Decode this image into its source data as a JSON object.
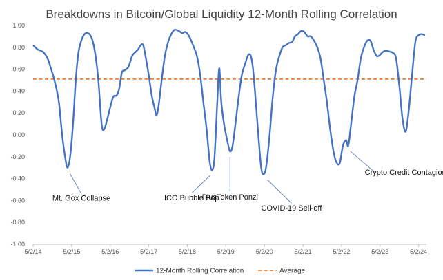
{
  "chart_data": {
    "type": "line",
    "title": "Breakdowns in Bitcoin/Global Liquidity 12-Month Rolling Correlation",
    "ylim": [
      -1.0,
      1.0
    ],
    "xlim": [
      "2014-05-02",
      "2024-07-15"
    ],
    "y_ticks": [
      "1.00",
      "0.80",
      "0.60",
      "0.40",
      "0.20",
      "0.00",
      "-0.20",
      "-0.40",
      "-0.60",
      "-0.80",
      "-1.00"
    ],
    "y_tick_values": [
      1.0,
      0.8,
      0.6,
      0.4,
      0.2,
      0.0,
      -0.2,
      -0.4,
      -0.6,
      -0.8,
      -1.0
    ],
    "x_ticks": [
      "5/2/14",
      "5/2/15",
      "5/2/16",
      "5/2/17",
      "5/2/18",
      "5/2/19",
      "5/2/20",
      "5/2/21",
      "5/2/22",
      "5/2/23",
      "5/2/24"
    ],
    "x_tick_dates": [
      "2014-05-02",
      "2015-05-02",
      "2016-05-02",
      "2017-05-02",
      "2018-05-02",
      "2019-05-02",
      "2020-05-02",
      "2021-05-02",
      "2022-05-02",
      "2023-05-02",
      "2024-05-02"
    ],
    "grid": false,
    "legend_position": "bottom",
    "series": [
      {
        "name": "12-Month Rolling Correlation",
        "color": "#4472C4",
        "style": "solid",
        "points": [
          [
            "2014-05-02",
            0.82
          ],
          [
            "2014-06-15",
            0.78
          ],
          [
            "2014-08-01",
            0.76
          ],
          [
            "2014-09-15",
            0.7
          ],
          [
            "2014-10-20",
            0.6
          ],
          [
            "2014-11-25",
            0.48
          ],
          [
            "2015-01-01",
            0.3
          ],
          [
            "2015-02-01",
            0.0
          ],
          [
            "2015-03-01",
            -0.2
          ],
          [
            "2015-03-25",
            -0.3
          ],
          [
            "2015-04-20",
            -0.18
          ],
          [
            "2015-05-15",
            0.1
          ],
          [
            "2015-06-10",
            0.5
          ],
          [
            "2015-07-05",
            0.75
          ],
          [
            "2015-08-01",
            0.86
          ],
          [
            "2015-09-01",
            0.92
          ],
          [
            "2015-10-05",
            0.93
          ],
          [
            "2015-11-10",
            0.88
          ],
          [
            "2015-12-10",
            0.75
          ],
          [
            "2016-01-10",
            0.5
          ],
          [
            "2016-02-10",
            0.1
          ],
          [
            "2016-03-05",
            0.05
          ],
          [
            "2016-04-05",
            0.15
          ],
          [
            "2016-05-01",
            0.25
          ],
          [
            "2016-06-01",
            0.35
          ],
          [
            "2016-07-01",
            0.36
          ],
          [
            "2016-07-25",
            0.42
          ],
          [
            "2016-08-20",
            0.57
          ],
          [
            "2016-09-15",
            0.59
          ],
          [
            "2016-10-20",
            0.62
          ],
          [
            "2016-11-25",
            0.72
          ],
          [
            "2016-12-20",
            0.75
          ],
          [
            "2017-01-20",
            0.78
          ],
          [
            "2017-02-15",
            0.82
          ],
          [
            "2017-03-10",
            0.82
          ],
          [
            "2017-04-01",
            0.72
          ],
          [
            "2017-05-01",
            0.55
          ],
          [
            "2017-06-01",
            0.35
          ],
          [
            "2017-06-25",
            0.25
          ],
          [
            "2017-07-15",
            0.18
          ],
          [
            "2017-08-05",
            0.28
          ],
          [
            "2017-09-01",
            0.5
          ],
          [
            "2017-10-01",
            0.72
          ],
          [
            "2017-11-01",
            0.85
          ],
          [
            "2017-12-01",
            0.92
          ],
          [
            "2018-01-01",
            0.96
          ],
          [
            "2018-02-10",
            0.95
          ],
          [
            "2018-03-15",
            0.93
          ],
          [
            "2018-04-15",
            0.94
          ],
          [
            "2018-05-20",
            0.9
          ],
          [
            "2018-06-25",
            0.82
          ],
          [
            "2018-08-01",
            0.72
          ],
          [
            "2018-09-01",
            0.55
          ],
          [
            "2018-10-01",
            0.3
          ],
          [
            "2018-11-01",
            0.05
          ],
          [
            "2018-12-01",
            -0.25
          ],
          [
            "2018-12-25",
            -0.32
          ],
          [
            "2019-01-15",
            -0.2
          ],
          [
            "2019-02-10",
            0.3
          ],
          [
            "2019-03-01",
            0.61
          ],
          [
            "2019-03-20",
            0.3
          ],
          [
            "2019-04-15",
            0.1
          ],
          [
            "2019-05-15",
            -0.05
          ],
          [
            "2019-06-10",
            -0.15
          ],
          [
            "2019-07-05",
            -0.1
          ],
          [
            "2019-08-01",
            0.1
          ],
          [
            "2019-09-01",
            0.35
          ],
          [
            "2019-10-01",
            0.55
          ],
          [
            "2019-11-01",
            0.65
          ],
          [
            "2019-12-01",
            0.73
          ],
          [
            "2019-12-25",
            0.72
          ],
          [
            "2020-01-15",
            0.6
          ],
          [
            "2020-02-10",
            0.3
          ],
          [
            "2020-03-05",
            0.0
          ],
          [
            "2020-04-01",
            -0.3
          ],
          [
            "2020-04-25",
            -0.36
          ],
          [
            "2020-05-20",
            -0.28
          ],
          [
            "2020-06-20",
            0.0
          ],
          [
            "2020-07-20",
            0.35
          ],
          [
            "2020-08-20",
            0.6
          ],
          [
            "2020-09-20",
            0.72
          ],
          [
            "2020-10-20",
            0.8
          ],
          [
            "2020-11-20",
            0.82
          ],
          [
            "2020-12-20",
            0.84
          ],
          [
            "2021-01-20",
            0.85
          ],
          [
            "2021-02-15",
            0.9
          ],
          [
            "2021-03-15",
            0.92
          ],
          [
            "2021-04-15",
            0.95
          ],
          [
            "2021-05-15",
            0.94
          ],
          [
            "2021-06-15",
            0.9
          ],
          [
            "2021-07-15",
            0.9
          ],
          [
            "2021-08-15",
            0.86
          ],
          [
            "2021-09-15",
            0.8
          ],
          [
            "2021-10-15",
            0.7
          ],
          [
            "2021-11-15",
            0.5
          ],
          [
            "2021-12-15",
            0.3
          ],
          [
            "2022-01-15",
            0.05
          ],
          [
            "2022-02-15",
            -0.15
          ],
          [
            "2022-03-15",
            -0.25
          ],
          [
            "2022-04-15",
            -0.26
          ],
          [
            "2022-05-15",
            -0.1
          ],
          [
            "2022-06-15",
            -0.05
          ],
          [
            "2022-07-05",
            -0.1
          ],
          [
            "2022-08-01",
            0.1
          ],
          [
            "2022-09-01",
            0.35
          ],
          [
            "2022-10-01",
            0.5
          ],
          [
            "2022-11-01",
            0.7
          ],
          [
            "2022-12-01",
            0.8
          ],
          [
            "2023-01-01",
            0.86
          ],
          [
            "2023-02-01",
            0.86
          ],
          [
            "2023-03-01",
            0.78
          ],
          [
            "2023-04-01",
            0.72
          ],
          [
            "2023-05-01",
            0.73
          ],
          [
            "2023-06-01",
            0.76
          ],
          [
            "2023-07-01",
            0.77
          ],
          [
            "2023-08-01",
            0.76
          ],
          [
            "2023-09-01",
            0.75
          ],
          [
            "2023-10-01",
            0.7
          ],
          [
            "2023-11-01",
            0.45
          ],
          [
            "2023-12-01",
            0.15
          ],
          [
            "2024-01-01",
            0.03
          ],
          [
            "2024-02-01",
            0.25
          ],
          [
            "2024-03-01",
            0.55
          ],
          [
            "2024-04-01",
            0.85
          ],
          [
            "2024-05-01",
            0.91
          ],
          [
            "2024-06-01",
            0.92
          ],
          [
            "2024-07-01",
            0.91
          ]
        ]
      },
      {
        "name": "Average",
        "color": "#ED7D31",
        "style": "dashed",
        "constant": 0.51
      }
    ],
    "annotations": [
      {
        "text": "Mt. Gox Collapse",
        "at": [
          "2015-03-25",
          -0.3
        ]
      },
      {
        "text": "ICO Bubble Pop",
        "at": [
          "2018-12-25",
          -0.32
        ]
      },
      {
        "text": "PlusToken Ponzi",
        "at": [
          "2019-06-10",
          -0.15
        ]
      },
      {
        "text": "COVID-19 Sell-off",
        "at": [
          "2020-05-10",
          -0.36
        ]
      },
      {
        "text": "Crypto Credit Contagion",
        "at": [
          "2022-07-05",
          -0.1
        ]
      }
    ]
  }
}
